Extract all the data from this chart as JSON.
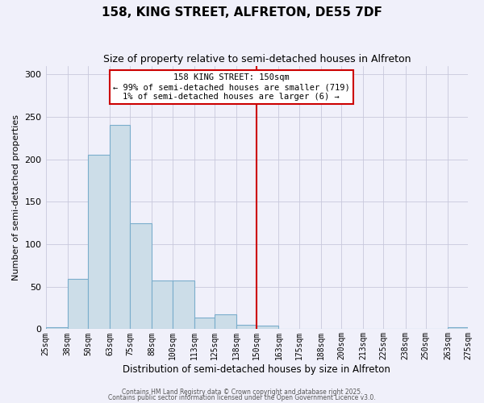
{
  "title": "158, KING STREET, ALFRETON, DE55 7DF",
  "subtitle": "Size of property relative to semi-detached houses in Alfreton",
  "xlabel": "Distribution of semi-detached houses by size in Alfreton",
  "ylabel": "Number of semi-detached properties",
  "bin_labels": [
    "25sqm",
    "38sqm",
    "50sqm",
    "63sqm",
    "75sqm",
    "88sqm",
    "100sqm",
    "113sqm",
    "125sqm",
    "138sqm",
    "150sqm",
    "163sqm",
    "175sqm",
    "188sqm",
    "200sqm",
    "213sqm",
    "225sqm",
    "238sqm",
    "250sqm",
    "263sqm",
    "275sqm"
  ],
  "bin_edges": [
    25,
    38,
    50,
    63,
    75,
    88,
    100,
    113,
    125,
    138,
    150,
    163,
    175,
    188,
    200,
    213,
    225,
    238,
    250,
    263,
    275
  ],
  "bar_values": [
    2,
    59,
    205,
    240,
    125,
    57,
    57,
    14,
    17,
    5,
    4,
    0,
    0,
    0,
    0,
    0,
    0,
    0,
    0,
    2
  ],
  "bar_color": "#ccdde8",
  "bar_edge_color": "#7aadcc",
  "vline_x": 150,
  "vline_color": "#cc0000",
  "annotation_line1": "158 KING STREET: 150sqm",
  "annotation_line2": "← 99% of semi-detached houses are smaller (719)",
  "annotation_line3": "1% of semi-detached houses are larger (6) →",
  "ylim": [
    0,
    310
  ],
  "yticks": [
    0,
    50,
    100,
    150,
    200,
    250,
    300
  ],
  "background_color": "#f0f0fa",
  "grid_color": "#c8c8dc",
  "footer_line1": "Contains HM Land Registry data © Crown copyright and database right 2025.",
  "footer_line2": "Contains public sector information licensed under the Open Government Licence v3.0."
}
